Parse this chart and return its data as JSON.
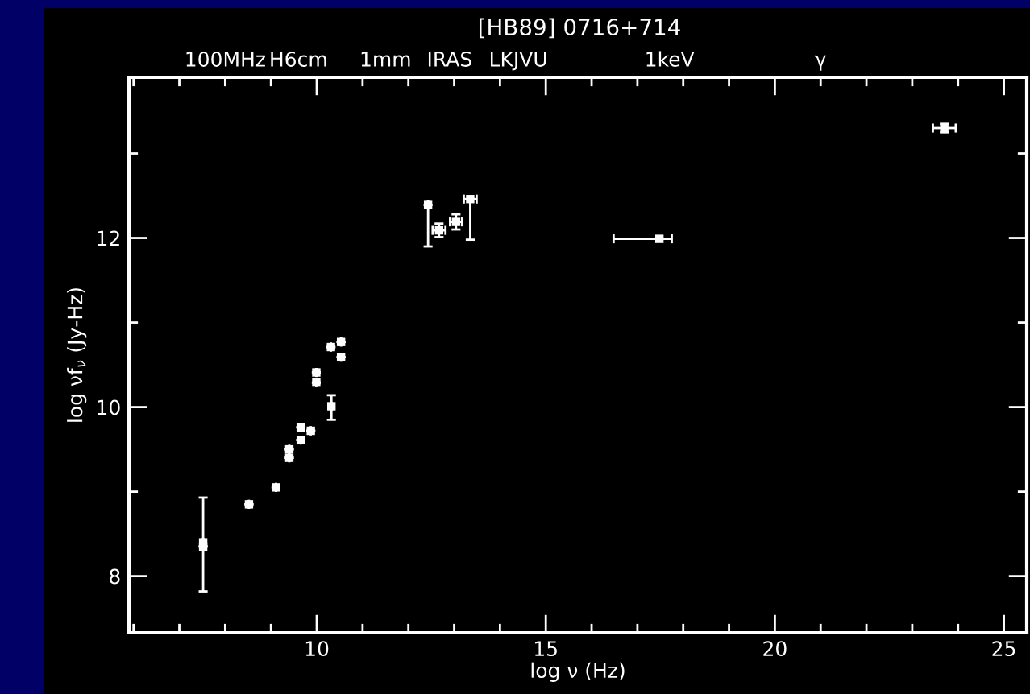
{
  "chart_data": {
    "type": "scatter",
    "title": "[HB89] 0716+714",
    "xlabel": "log ν (Hz)",
    "ylabel": "log νf$_{ν}$ (Jy-Hz)",
    "x": [
      7.52,
      7.52,
      8.52,
      9.11,
      9.4,
      9.4,
      9.65,
      9.65,
      9.87,
      9.99,
      9.99,
      10.31,
      10.32,
      10.53,
      10.53,
      12.43,
      12.67,
      13.04,
      13.35,
      17.48,
      23.7
    ],
    "series": [
      {
        "color": "#ffffff",
        "values": [
          8.4,
          8.35,
          8.85,
          9.05,
          9.5,
          9.4,
          9.76,
          9.61,
          9.72,
          10.41,
          10.29,
          10.71,
          10.01,
          10.77,
          10.59,
          12.39,
          12.09,
          12.19,
          12.46,
          11.99,
          13.3
        ],
        "errors": [
          [
            7.82,
            8.93
          ],
          null,
          null,
          null,
          null,
          null,
          null,
          null,
          null,
          null,
          null,
          null,
          [
            9.85,
            10.14
          ],
          null,
          null,
          [
            11.9,
            12.39
          ],
          0.08,
          0.09,
          [
            11.98,
            12.46
          ],
          null,
          0.05
        ],
        "xerrors": [
          null,
          null,
          null,
          null,
          null,
          null,
          null,
          null,
          null,
          null,
          null,
          null,
          null,
          null,
          null,
          null,
          0.14,
          0.13,
          0.14,
          [
            16.48,
            17.75
          ],
          0.25
        ]
      }
    ],
    "marker": "square",
    "xlim": [
      5.9,
      25.5
    ],
    "xticks": [
      {
        "value": 6,
        "label": null
      },
      {
        "value": 7,
        "label": null
      },
      {
        "value": 8,
        "label": null
      },
      {
        "value": 9,
        "label": null
      },
      10,
      {
        "value": 11,
        "label": null
      },
      {
        "value": 12,
        "label": null
      },
      {
        "value": 13,
        "label": null
      },
      {
        "value": 14,
        "label": null
      },
      15,
      {
        "value": 16,
        "label": null
      },
      {
        "value": 17,
        "label": null
      },
      {
        "value": 18,
        "label": null
      },
      {
        "value": 19,
        "label": null
      },
      20,
      {
        "value": 21,
        "label": null
      },
      {
        "value": 22,
        "label": null
      },
      {
        "value": 23,
        "label": null
      },
      {
        "value": 24,
        "label": null
      },
      25
    ],
    "ylim": [
      7.33,
      13.9
    ],
    "yticks": [
      8,
      {
        "value": 9,
        "label": null
      },
      10,
      {
        "value": 11,
        "label": null
      },
      12,
      {
        "value": 13,
        "label": null
      }
    ],
    "annotations": [
      "100MHz",
      "H6cm",
      "1mm",
      "IRAS",
      "LKJVU",
      "1keV",
      "γ"
    ],
    "grid": false,
    "legend": false
  }
}
